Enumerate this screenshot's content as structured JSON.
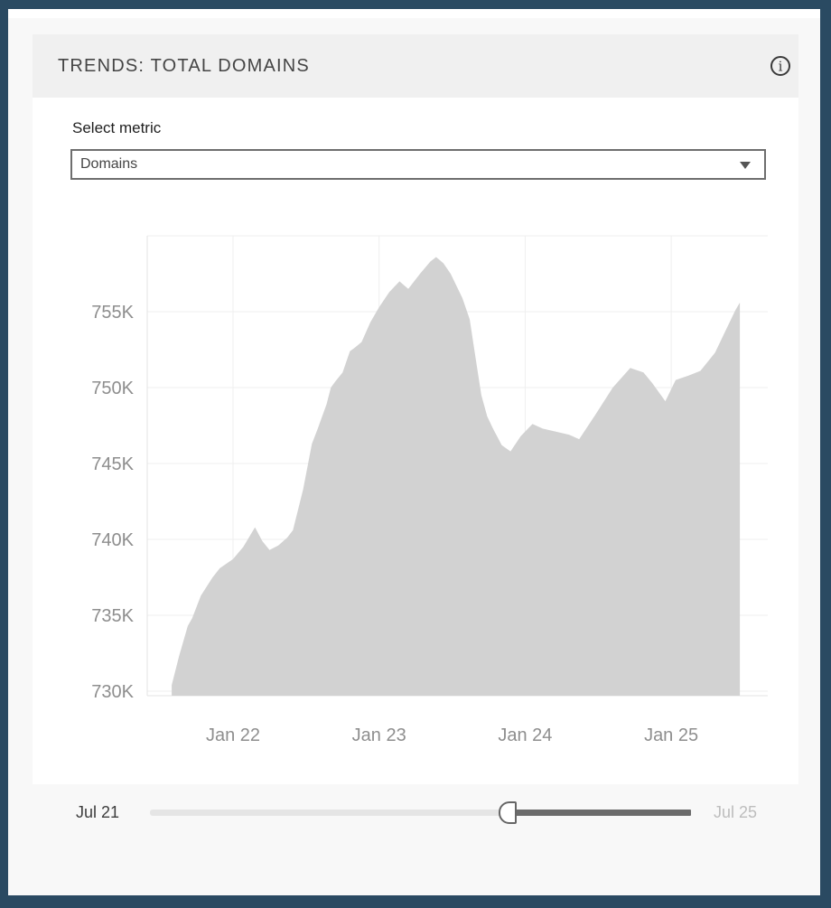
{
  "header": {
    "title": "TRENDS: TOTAL DOMAINS",
    "info_icon": "info-circle"
  },
  "metric_selector": {
    "label": "Select metric",
    "selected_value": "Domains",
    "caret_icon": "caret-down"
  },
  "chart_data": {
    "type": "area",
    "title": "",
    "legend": false,
    "grid": true,
    "x_axis": {
      "ticks": [
        {
          "label": "Jan 22",
          "year": 2022
        },
        {
          "label": "Jan 23",
          "year": 2023
        },
        {
          "label": "Jan 24",
          "year": 2024
        },
        {
          "label": "Jan 25",
          "year": 2025
        }
      ],
      "range_years": [
        2021.45,
        2025.6
      ]
    },
    "y_axis": {
      "tick_labels": [
        "755K",
        "750K",
        "745K",
        "740K",
        "735K",
        "730K"
      ],
      "tick_values": [
        755,
        750,
        745,
        740,
        735,
        730
      ],
      "gridline_values": [
        760,
        755,
        750,
        745,
        740,
        735,
        730
      ],
      "value_format": "K",
      "approx_range": [
        729.6,
        760.3
      ]
    },
    "series": [
      {
        "name": "Domains",
        "fill_color": "#d2d2d2",
        "points": [
          [
            2021.58,
            730.4
          ],
          [
            2021.63,
            732.3
          ],
          [
            2021.69,
            734.3
          ],
          [
            2021.72,
            734.8
          ],
          [
            2021.78,
            736.3
          ],
          [
            2021.86,
            737.5
          ],
          [
            2021.91,
            738.1
          ],
          [
            2022.0,
            738.7
          ],
          [
            2022.07,
            739.5
          ],
          [
            2022.15,
            740.8
          ],
          [
            2022.2,
            739.9
          ],
          [
            2022.25,
            739.3
          ],
          [
            2022.31,
            739.6
          ],
          [
            2022.37,
            740.1
          ],
          [
            2022.41,
            740.6
          ],
          [
            2022.48,
            743.3
          ],
          [
            2022.54,
            746.3
          ],
          [
            2022.58,
            747.3
          ],
          [
            2022.64,
            748.9
          ],
          [
            2022.67,
            750.0
          ],
          [
            2022.7,
            750.4
          ],
          [
            2022.75,
            751.0
          ],
          [
            2022.8,
            752.4
          ],
          [
            2022.83,
            752.6
          ],
          [
            2022.88,
            753.0
          ],
          [
            2022.94,
            754.3
          ],
          [
            2023.0,
            755.3
          ],
          [
            2023.07,
            756.3
          ],
          [
            2023.14,
            757.0
          ],
          [
            2023.2,
            756.5
          ],
          [
            2023.28,
            757.5
          ],
          [
            2023.35,
            758.3
          ],
          [
            2023.39,
            758.6
          ],
          [
            2023.44,
            758.2
          ],
          [
            2023.49,
            757.5
          ],
          [
            2023.57,
            755.9
          ],
          [
            2023.62,
            754.5
          ],
          [
            2023.66,
            752.0
          ],
          [
            2023.7,
            749.5
          ],
          [
            2023.74,
            748.1
          ],
          [
            2023.78,
            747.3
          ],
          [
            2023.84,
            746.2
          ],
          [
            2023.9,
            745.8
          ],
          [
            2023.97,
            746.8
          ],
          [
            2024.05,
            747.6
          ],
          [
            2024.12,
            747.3
          ],
          [
            2024.21,
            747.1
          ],
          [
            2024.3,
            746.9
          ],
          [
            2024.37,
            746.6
          ],
          [
            2024.48,
            748.2
          ],
          [
            2024.6,
            750.0
          ],
          [
            2024.72,
            751.3
          ],
          [
            2024.81,
            751.0
          ],
          [
            2024.87,
            750.3
          ],
          [
            2024.96,
            749.1
          ],
          [
            2025.03,
            750.5
          ],
          [
            2025.12,
            750.8
          ],
          [
            2025.2,
            751.1
          ],
          [
            2025.3,
            752.3
          ],
          [
            2025.37,
            753.7
          ],
          [
            2025.44,
            755.1
          ],
          [
            2025.47,
            755.6
          ]
        ]
      }
    ]
  },
  "time_slider": {
    "start_label": "Jul 21",
    "end_label": "Jul 25",
    "handle_position_pct": 66
  },
  "colors": {
    "frame_border": "#2a4a62",
    "page_bg": "#f8f8f8",
    "header_bg": "#f0f0f0",
    "area_fill": "#d2d2d2",
    "axis_text": "#8e8e8e",
    "slider_selected": "#6b6b6b",
    "slider_unselected": "#e5e5e5"
  }
}
